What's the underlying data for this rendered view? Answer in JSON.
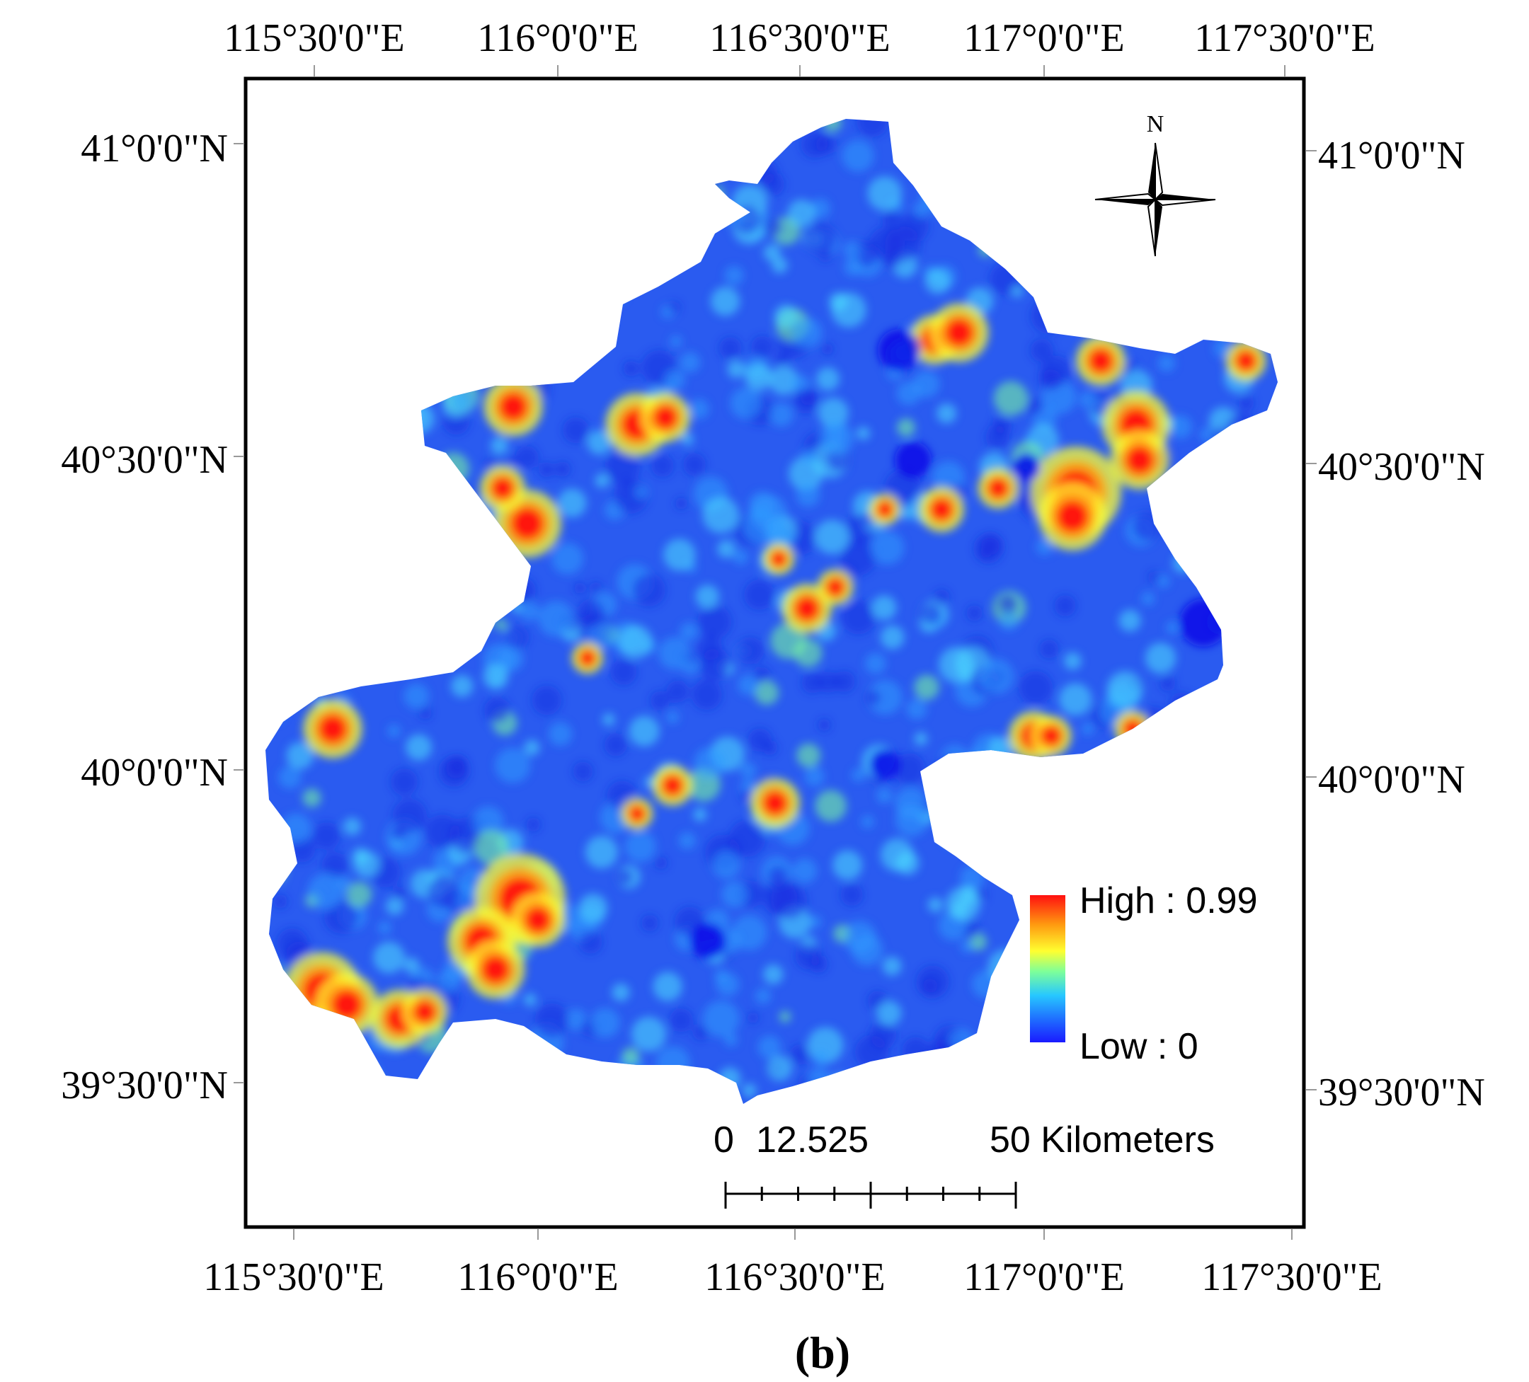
{
  "map": {
    "top_lon_labels": [
      "115°30'0\"E",
      "116°0'0\"E",
      "116°30'0\"E",
      "117°0'0\"E",
      "117°30'0\"E"
    ],
    "bottom_lon_labels": [
      "115°30'0\"E",
      "116°0'0\"E",
      "116°30'0\"E",
      "117°0'0\"E",
      "117°30'0\"E"
    ],
    "left_lat_labels": [
      "41°0'0\"N",
      "40°30'0\"N",
      "40°0'0\"N",
      "39°30'0\"N"
    ],
    "right_lat_labels": [
      "41°0'0\"N",
      "40°30'0\"N",
      "40°0'0\"N",
      "39°30'0\"N"
    ],
    "north_arrow_label": "N",
    "legend": {
      "high_label": "High : 0.99",
      "low_label": "Low : 0",
      "high_value": 0.99,
      "low_value": 0,
      "colors": [
        "#1a1aff",
        "#1f6fff",
        "#27c8ff",
        "#7dff9a",
        "#ffff30",
        "#ff9a10",
        "#ff1010"
      ]
    },
    "scale_bar": {
      "zero": "0",
      "mid": "12.525",
      "end": "50 Kilometers"
    },
    "panel_label": "(b)",
    "raster_base_color": "#2a5bf0"
  }
}
